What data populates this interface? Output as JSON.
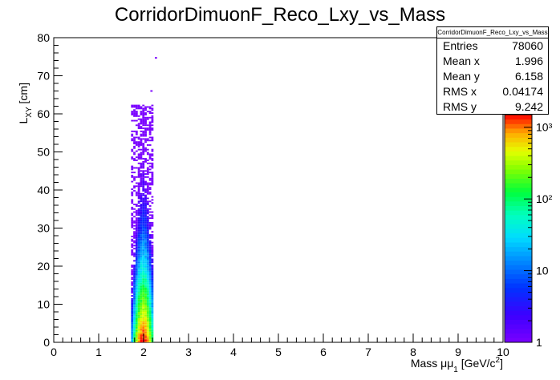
{
  "chart_data": {
    "type": "heatmap",
    "title": "CorridorDimuonF_Reco_Lxy_vs_Mass",
    "xlabel": "Mass μμ₁ [GeV/c²]",
    "xlabel_parts": {
      "main": "Mass μμ",
      "sub": "1",
      "unit_pre": " [GeV/c",
      "unit_sup": "2",
      "unit_post": "]"
    },
    "ylabel": "L_XY [cm]",
    "ylabel_parts": {
      "main": "L",
      "sub": "XY",
      "unit": " [cm]"
    },
    "xlim": [
      0,
      10
    ],
    "ylim": [
      0,
      80
    ],
    "xticks": [
      0,
      1,
      2,
      3,
      4,
      5,
      6,
      7,
      8,
      9,
      10
    ],
    "yticks": [
      0,
      10,
      20,
      30,
      40,
      50,
      60,
      70,
      80
    ],
    "colorbar": {
      "scale": "log",
      "range": [
        1,
        1500
      ],
      "tick_labels": [
        "1",
        "10",
        "10²",
        "10³"
      ],
      "tick_values": [
        1,
        10,
        100,
        1000
      ]
    },
    "distribution": {
      "x_center": 1.996,
      "x_rms": 0.04174,
      "x_band": [
        1.72,
        2.2
      ],
      "y_mean": 6.158,
      "y_rms": 9.242,
      "y_max_dense": 62,
      "outliers": [
        {
          "x": 2.25,
          "y": 74.5
        },
        {
          "x": 2.15,
          "y": 65.8
        }
      ]
    },
    "stats": {
      "title": "CorridorDimuonF_Reco_Lxy_vs_Mass",
      "entries": [
        {
          "label": "Entries",
          "value": "78060"
        },
        {
          "label": "Mean x",
          "value": "1.996"
        },
        {
          "label": "Mean y",
          "value": "6.158"
        },
        {
          "label": "RMS x",
          "value": "0.04174"
        },
        {
          "label": "RMS y",
          "value": "9.242"
        }
      ]
    }
  }
}
